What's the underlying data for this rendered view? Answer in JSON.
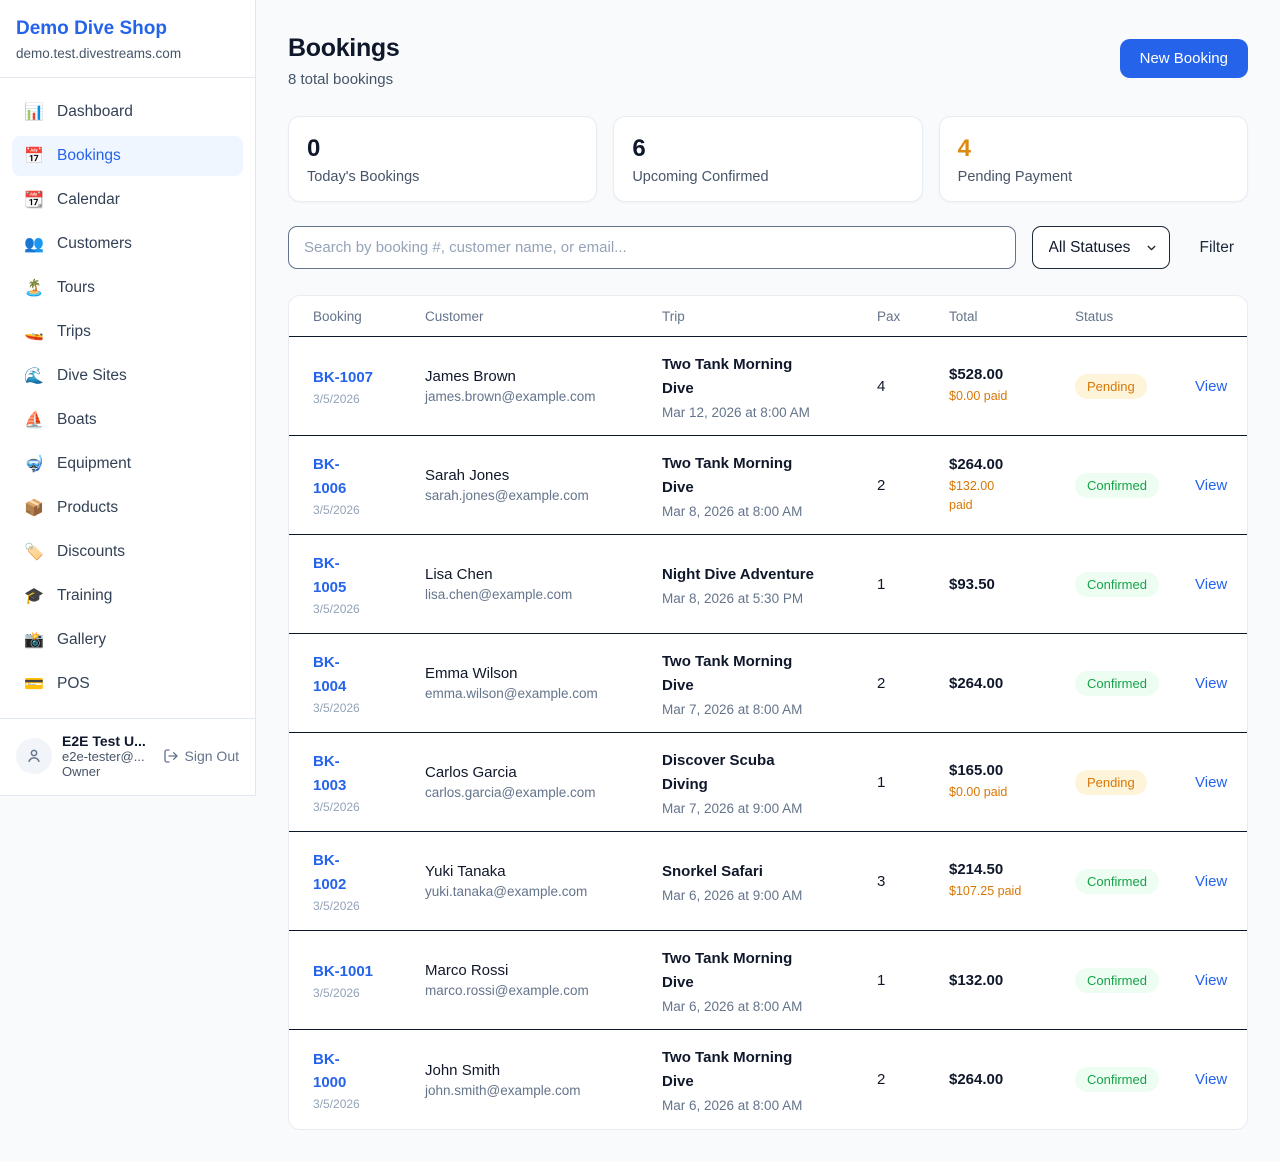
{
  "colors": {
    "accent_blue": "#2563eb",
    "orange": "#d97706",
    "green": "#16a34a",
    "pending_bg": "#fdf4da",
    "confirmed_bg": "#eefdf2"
  },
  "sidebar": {
    "brand": {
      "name": "Demo Dive Shop",
      "domain": "demo.test.divestreams.com"
    },
    "items": [
      {
        "icon": "📊",
        "icon_name": "dashboard-icon",
        "label": "Dashboard",
        "active": false
      },
      {
        "icon": "📅",
        "icon_name": "bookings-calendar-icon",
        "label": "Bookings",
        "active": true
      },
      {
        "icon": "📆",
        "icon_name": "calendar-icon",
        "label": "Calendar",
        "active": false
      },
      {
        "icon": "👥",
        "icon_name": "customers-icon",
        "label": "Customers",
        "active": false
      },
      {
        "icon": "🏝️",
        "icon_name": "tours-island-icon",
        "label": "Tours",
        "active": false
      },
      {
        "icon": "🚤",
        "icon_name": "trips-boat-icon",
        "label": "Trips",
        "active": false
      },
      {
        "icon": "🌊",
        "icon_name": "dive-sites-wave-icon",
        "label": "Dive Sites",
        "active": false
      },
      {
        "icon": "⛵",
        "icon_name": "boats-sailboat-icon",
        "label": "Boats",
        "active": false
      },
      {
        "icon": "🤿",
        "icon_name": "equipment-mask-icon",
        "label": "Equipment",
        "active": false
      },
      {
        "icon": "📦",
        "icon_name": "products-package-icon",
        "label": "Products",
        "active": false
      },
      {
        "icon": "🏷️",
        "icon_name": "discounts-tag-icon",
        "label": "Discounts",
        "active": false
      },
      {
        "icon": "🎓",
        "icon_name": "training-grad-cap-icon",
        "label": "Training",
        "active": false
      },
      {
        "icon": "📸",
        "icon_name": "gallery-camera-icon",
        "label": "Gallery",
        "active": false
      },
      {
        "icon": "💳",
        "icon_name": "pos-card-icon",
        "label": "POS",
        "active": false
      }
    ],
    "user": {
      "name": "E2E Test U...",
      "email": "e2e-tester@...",
      "role": "Owner",
      "sign_out_label": "Sign Out"
    }
  },
  "header": {
    "title": "Bookings",
    "subtitle": "8 total bookings",
    "new_booking_label": "New Booking"
  },
  "stats": [
    {
      "value": "0",
      "label": "Today's Bookings",
      "orange": false
    },
    {
      "value": "6",
      "label": "Upcoming Confirmed",
      "orange": false
    },
    {
      "value": "4",
      "label": "Pending Payment",
      "orange": true
    }
  ],
  "controls": {
    "search_placeholder": "Search by booking #, customer name, or email...",
    "status_filter_value": "All Statuses",
    "filter_label": "Filter"
  },
  "table": {
    "headers": {
      "booking": "Booking",
      "customer": "Customer",
      "trip": "Trip",
      "pax": "Pax",
      "total": "Total",
      "status": "Status"
    },
    "view_label": "View",
    "rows": [
      {
        "booking": "BK-1007",
        "date": "3/5/2026",
        "customer": "James Brown",
        "email": "james.brown@example.com",
        "trip": "Two Tank Morning\nDive",
        "when": "Mar 12, 2026 at 8:00 AM",
        "pax": "4",
        "total": "$528.00",
        "paid": "$0.00 paid",
        "status": "Pending"
      },
      {
        "booking": "BK-\n1006",
        "date": "3/5/2026",
        "customer": "Sarah Jones",
        "email": "sarah.jones@example.com",
        "trip": "Two Tank Morning\nDive",
        "when": "Mar 8, 2026 at 8:00 AM",
        "pax": "2",
        "total": "$264.00",
        "paid": "$132.00\npaid",
        "status": "Confirmed"
      },
      {
        "booking": "BK-\n1005",
        "date": "3/5/2026",
        "customer": "Lisa Chen",
        "email": "lisa.chen@example.com",
        "trip": "Night Dive Adventure",
        "when": "Mar 8, 2026 at 5:30 PM",
        "pax": "1",
        "total": "$93.50",
        "paid": "",
        "status": "Confirmed"
      },
      {
        "booking": "BK-\n1004",
        "date": "3/5/2026",
        "customer": "Emma Wilson",
        "email": "emma.wilson@example.com",
        "trip": "Two Tank Morning\nDive",
        "when": "Mar 7, 2026 at 8:00 AM",
        "pax": "2",
        "total": "$264.00",
        "paid": "",
        "status": "Confirmed"
      },
      {
        "booking": "BK-\n1003",
        "date": "3/5/2026",
        "customer": "Carlos Garcia",
        "email": "carlos.garcia@example.com",
        "trip": "Discover Scuba\nDiving",
        "when": "Mar 7, 2026 at 9:00 AM",
        "pax": "1",
        "total": "$165.00",
        "paid": "$0.00 paid",
        "status": "Pending"
      },
      {
        "booking": "BK-\n1002",
        "date": "3/5/2026",
        "customer": "Yuki Tanaka",
        "email": "yuki.tanaka@example.com",
        "trip": "Snorkel Safari",
        "when": "Mar 6, 2026 at 9:00 AM",
        "pax": "3",
        "total": "$214.50",
        "paid": "$107.25 paid",
        "status": "Confirmed"
      },
      {
        "booking": "BK-1001",
        "date": "3/5/2026",
        "customer": "Marco Rossi",
        "email": "marco.rossi@example.com",
        "trip": "Two Tank Morning\nDive",
        "when": "Mar 6, 2026 at 8:00 AM",
        "pax": "1",
        "total": "$132.00",
        "paid": "",
        "status": "Confirmed"
      },
      {
        "booking": "BK-\n1000",
        "date": "3/5/2026",
        "customer": "John Smith",
        "email": "john.smith@example.com",
        "trip": "Two Tank Morning\nDive",
        "when": "Mar 6, 2026 at 8:00 AM",
        "pax": "2",
        "total": "$264.00",
        "paid": "",
        "status": "Confirmed"
      }
    ]
  }
}
